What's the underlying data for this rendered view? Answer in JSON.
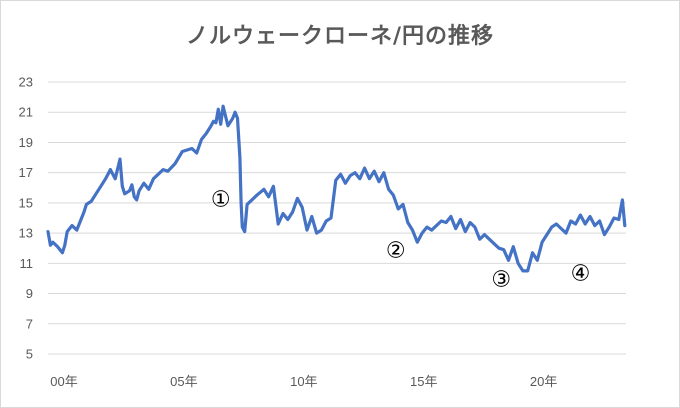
{
  "chart_data": {
    "type": "line",
    "title": "ノルウェークローネ/円の推移",
    "xlabel": "",
    "ylabel": "",
    "ylim": [
      5,
      23
    ],
    "yticks": [
      5,
      7,
      9,
      11,
      13,
      15,
      17,
      19,
      21,
      23
    ],
    "xlim": [
      2000,
      2024.1
    ],
    "xticks": [
      {
        "value": 2000,
        "label": "00年"
      },
      {
        "value": 2005,
        "label": "05年"
      },
      {
        "value": 2010,
        "label": "10年"
      },
      {
        "value": 2015,
        "label": "15年"
      },
      {
        "value": 2020,
        "label": "20年"
      }
    ],
    "grid": true,
    "legend": "none",
    "line_color": "#4472C4",
    "series": [
      {
        "x": [
          2000.0,
          2000.1,
          2000.2,
          2000.4,
          2000.6,
          2000.7,
          2000.8,
          2000.9,
          2001.0,
          2001.2,
          2001.3,
          2001.5,
          2001.6,
          2001.8,
          2002.0,
          2002.2,
          2002.4,
          2002.6,
          2002.8,
          2003.0,
          2003.1,
          2003.2,
          2003.4,
          2003.5,
          2003.6,
          2003.7,
          2003.8,
          2004.0,
          2004.2,
          2004.4,
          2004.6,
          2004.8,
          2005.0,
          2005.3,
          2005.6,
          2006.0,
          2006.2,
          2006.4,
          2006.6,
          2006.8,
          2006.9,
          2007.0,
          2007.1,
          2007.2,
          2007.3,
          2007.5,
          2007.7,
          2007.8,
          2007.9,
          2008.0,
          2008.05,
          2008.1,
          2008.2,
          2008.3,
          2008.5,
          2008.7,
          2009.0,
          2009.2,
          2009.4,
          2009.6,
          2009.8,
          2010.0,
          2010.2,
          2010.4,
          2010.6,
          2010.8,
          2011.0,
          2011.2,
          2011.4,
          2011.6,
          2011.8,
          2012.0,
          2012.2,
          2012.4,
          2012.6,
          2012.8,
          2013.0,
          2013.2,
          2013.4,
          2013.6,
          2013.8,
          2014.0,
          2014.2,
          2014.4,
          2014.6,
          2014.8,
          2015.0,
          2015.2,
          2015.4,
          2015.6,
          2015.8,
          2016.0,
          2016.2,
          2016.4,
          2016.6,
          2016.8,
          2017.0,
          2017.2,
          2017.4,
          2017.6,
          2017.8,
          2018.0,
          2018.2,
          2018.4,
          2018.6,
          2018.8,
          2019.0,
          2019.2,
          2019.4,
          2019.6,
          2019.8,
          2020.0,
          2020.2,
          2020.4,
          2020.6,
          2020.8,
          2021.0,
          2021.2,
          2021.4,
          2021.6,
          2021.8,
          2022.0,
          2022.2,
          2022.4,
          2022.6,
          2022.8,
          2023.0,
          2023.2,
          2023.4,
          2023.6,
          2023.8,
          2023.95,
          2024.05
        ],
        "y": [
          13.1,
          12.2,
          12.4,
          12.1,
          11.7,
          12.2,
          13.1,
          13.3,
          13.5,
          13.2,
          13.6,
          14.4,
          14.9,
          15.1,
          15.6,
          16.1,
          16.6,
          17.2,
          16.6,
          17.9,
          16.1,
          15.6,
          15.8,
          16.2,
          15.4,
          15.2,
          15.8,
          16.3,
          15.9,
          16.6,
          16.9,
          17.2,
          17.1,
          17.6,
          18.4,
          18.6,
          18.3,
          19.2,
          19.6,
          20.1,
          20.4,
          20.3,
          21.2,
          20.2,
          21.4,
          20.1,
          20.6,
          21.0,
          20.6,
          18.0,
          15.0,
          13.4,
          13.1,
          14.9,
          15.2,
          15.5,
          15.9,
          15.4,
          16.1,
          13.6,
          14.3,
          13.9,
          14.4,
          15.3,
          14.7,
          13.2,
          14.1,
          13.0,
          13.2,
          13.8,
          14.0,
          16.5,
          16.9,
          16.3,
          16.8,
          17.0,
          16.6,
          17.3,
          16.6,
          17.1,
          16.4,
          17.0,
          15.9,
          15.5,
          14.6,
          14.9,
          13.7,
          13.2,
          12.4,
          13.0,
          13.4,
          13.2,
          13.5,
          13.8,
          13.7,
          14.1,
          13.3,
          13.9,
          13.1,
          13.7,
          13.4,
          12.6,
          12.9,
          12.6,
          12.3,
          12.0,
          11.9,
          11.2,
          12.1,
          11.0,
          10.5,
          10.5,
          11.7,
          11.2,
          12.4,
          12.9,
          13.4,
          13.6,
          13.3,
          13.0,
          13.8,
          13.6,
          14.2,
          13.6,
          14.1,
          13.5,
          13.8,
          12.9,
          13.4,
          14.0,
          13.9,
          15.2,
          13.5
        ]
      }
    ],
    "annotations": [
      {
        "label": "①",
        "x": 2007.2,
        "y": 15.3
      },
      {
        "label": "②",
        "x": 2014.5,
        "y": 11.9
      },
      {
        "label": "③",
        "x": 2018.9,
        "y": 10.0
      },
      {
        "label": "④",
        "x": 2022.2,
        "y": 10.4
      }
    ]
  }
}
